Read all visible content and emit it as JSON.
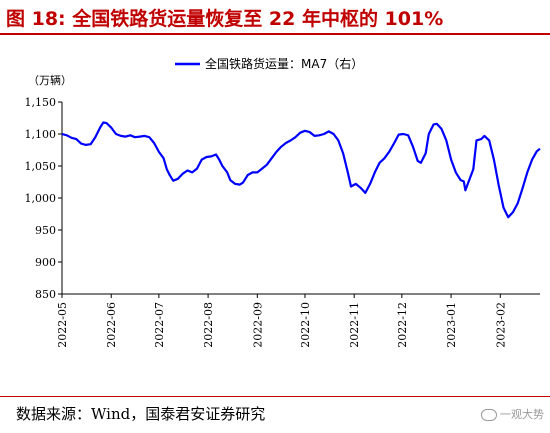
{
  "header": {
    "title": "图 18:  全国铁路货运量恢复至 22 年中枢的 101%"
  },
  "footer": {
    "source": "数据来源：Wind，国泰君安证券研究",
    "watermark": "一观大势"
  },
  "colors": {
    "title": "#c00000",
    "rule": "#c00000",
    "series": "#0000ff"
  },
  "chart_data": {
    "type": "line",
    "unit_label": "（万辆）",
    "ylim": [
      850,
      1150
    ],
    "yticks": [
      "1,150",
      "1,100",
      "1,050",
      "1,000",
      "950",
      "900",
      "850"
    ],
    "xlim": [
      "2022-05-01",
      "2023-02-26"
    ],
    "xticks": [
      "2022-05",
      "2022-06",
      "2022-07",
      "2022-08",
      "2022-09",
      "2022-10",
      "2022-11",
      "2022-12",
      "2023-01",
      "2023-02"
    ],
    "grid": false,
    "legend_position": "top-center",
    "series": [
      {
        "name": "全国铁路货运量：MA7（右）",
        "points": [
          [
            "2022-05-01",
            1100
          ],
          [
            "2022-05-04",
            1098
          ],
          [
            "2022-05-07",
            1094
          ],
          [
            "2022-05-10",
            1092
          ],
          [
            "2022-05-13",
            1085
          ],
          [
            "2022-05-16",
            1083
          ],
          [
            "2022-05-19",
            1084
          ],
          [
            "2022-05-22",
            1095
          ],
          [
            "2022-05-25",
            1110
          ],
          [
            "2022-05-27",
            1118
          ],
          [
            "2022-05-29",
            1117
          ],
          [
            "2022-06-01",
            1110
          ],
          [
            "2022-06-04",
            1100
          ],
          [
            "2022-06-07",
            1097
          ],
          [
            "2022-06-10",
            1096
          ],
          [
            "2022-06-13",
            1098
          ],
          [
            "2022-06-16",
            1095
          ],
          [
            "2022-06-19",
            1096
          ],
          [
            "2022-06-22",
            1097
          ],
          [
            "2022-06-25",
            1095
          ],
          [
            "2022-06-28",
            1086
          ],
          [
            "2022-07-01",
            1072
          ],
          [
            "2022-07-04",
            1062
          ],
          [
            "2022-07-06",
            1045
          ],
          [
            "2022-07-08",
            1035
          ],
          [
            "2022-07-10",
            1027
          ],
          [
            "2022-07-13",
            1030
          ],
          [
            "2022-07-16",
            1038
          ],
          [
            "2022-07-19",
            1043
          ],
          [
            "2022-07-22",
            1040
          ],
          [
            "2022-07-25",
            1046
          ],
          [
            "2022-07-28",
            1060
          ],
          [
            "2022-07-31",
            1064
          ],
          [
            "2022-08-03",
            1065
          ],
          [
            "2022-08-06",
            1068
          ],
          [
            "2022-08-08",
            1060
          ],
          [
            "2022-08-10",
            1050
          ],
          [
            "2022-08-13",
            1040
          ],
          [
            "2022-08-15",
            1028
          ],
          [
            "2022-08-18",
            1022
          ],
          [
            "2022-08-21",
            1021
          ],
          [
            "2022-08-23",
            1024
          ],
          [
            "2022-08-26",
            1036
          ],
          [
            "2022-08-29",
            1040
          ],
          [
            "2022-09-01",
            1040
          ],
          [
            "2022-09-04",
            1046
          ],
          [
            "2022-09-07",
            1052
          ],
          [
            "2022-09-10",
            1062
          ],
          [
            "2022-09-13",
            1072
          ],
          [
            "2022-09-16",
            1080
          ],
          [
            "2022-09-19",
            1086
          ],
          [
            "2022-09-22",
            1090
          ],
          [
            "2022-09-25",
            1095
          ],
          [
            "2022-09-28",
            1102
          ],
          [
            "2022-10-01",
            1105
          ],
          [
            "2022-10-04",
            1103
          ],
          [
            "2022-10-07",
            1097
          ],
          [
            "2022-10-10",
            1098
          ],
          [
            "2022-10-13",
            1100
          ],
          [
            "2022-10-16",
            1104
          ],
          [
            "2022-10-19",
            1100
          ],
          [
            "2022-10-22",
            1090
          ],
          [
            "2022-10-25",
            1070
          ],
          [
            "2022-10-28",
            1040
          ],
          [
            "2022-10-30",
            1018
          ],
          [
            "2022-11-02",
            1022
          ],
          [
            "2022-11-05",
            1016
          ],
          [
            "2022-11-08",
            1008
          ],
          [
            "2022-11-11",
            1022
          ],
          [
            "2022-11-14",
            1040
          ],
          [
            "2022-11-17",
            1055
          ],
          [
            "2022-11-20",
            1062
          ],
          [
            "2022-11-23",
            1072
          ],
          [
            "2022-11-26",
            1085
          ],
          [
            "2022-11-29",
            1099
          ],
          [
            "2022-12-02",
            1100
          ],
          [
            "2022-12-05",
            1098
          ],
          [
            "2022-12-08",
            1080
          ],
          [
            "2022-12-11",
            1058
          ],
          [
            "2022-12-13",
            1055
          ],
          [
            "2022-12-16",
            1070
          ],
          [
            "2022-12-18",
            1100
          ],
          [
            "2022-12-21",
            1115
          ],
          [
            "2022-12-23",
            1116
          ],
          [
            "2022-12-26",
            1108
          ],
          [
            "2022-12-29",
            1090
          ],
          [
            "2023-01-01",
            1060
          ],
          [
            "2023-01-04",
            1040
          ],
          [
            "2023-01-07",
            1028
          ],
          [
            "2023-01-09",
            1026
          ],
          [
            "2023-01-10",
            1012
          ],
          [
            "2023-01-12",
            1025
          ],
          [
            "2023-01-15",
            1045
          ],
          [
            "2023-01-17",
            1090
          ],
          [
            "2023-01-20",
            1092
          ],
          [
            "2023-01-22",
            1097
          ],
          [
            "2023-01-25",
            1090
          ],
          [
            "2023-01-28",
            1060
          ],
          [
            "2023-01-31",
            1020
          ],
          [
            "2023-02-03",
            985
          ],
          [
            "2023-02-06",
            970
          ],
          [
            "2023-02-09",
            978
          ],
          [
            "2023-02-12",
            992
          ],
          [
            "2023-02-15",
            1015
          ],
          [
            "2023-02-18",
            1040
          ],
          [
            "2023-02-21",
            1060
          ],
          [
            "2023-02-24",
            1073
          ],
          [
            "2023-02-26",
            1077
          ]
        ]
      }
    ]
  }
}
